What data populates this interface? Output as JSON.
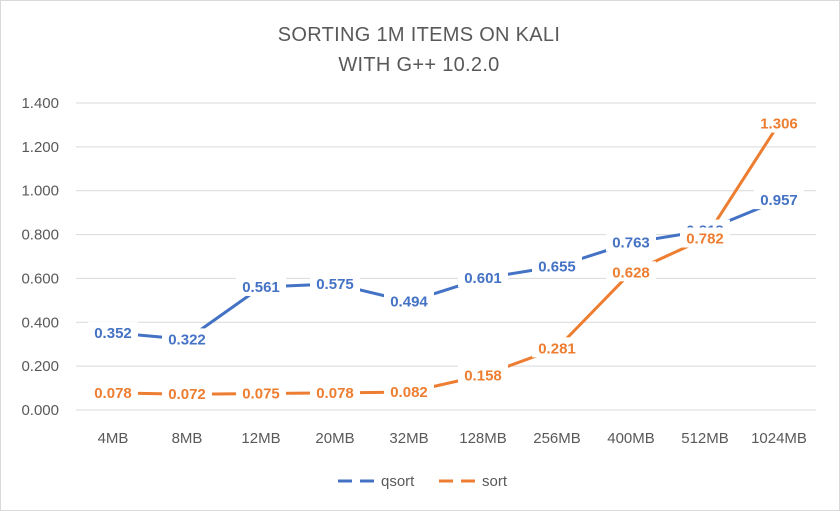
{
  "chart_data": {
    "type": "line",
    "title_lines": [
      "SORTING 1M ITEMS ON KALI",
      "WITH G++ 10.2.0"
    ],
    "categories": [
      "4MB",
      "8MB",
      "12MB",
      "20MB",
      "32MB",
      "128MB",
      "256MB",
      "400MB",
      "512MB",
      "1024MB"
    ],
    "y_ticks": [
      "0.000",
      "0.200",
      "0.400",
      "0.600",
      "0.800",
      "1.000",
      "1.200",
      "1.400"
    ],
    "ylim": [
      0,
      1.4
    ],
    "grid": true,
    "legend_position": "bottom",
    "series": [
      {
        "name": "qsort",
        "color": "#4472C4",
        "values": [
          0.352,
          0.322,
          0.561,
          0.575,
          0.494,
          0.601,
          0.655,
          0.763,
          0.818,
          0.957
        ],
        "labels": [
          "0.352",
          "0.322",
          "0.561",
          "0.575",
          "0.494",
          "0.601",
          "0.655",
          "0.763",
          "0.818",
          "0.957"
        ]
      },
      {
        "name": "sort",
        "color": "#ED7D31",
        "values": [
          0.078,
          0.072,
          0.075,
          0.078,
          0.082,
          0.158,
          0.281,
          0.628,
          0.782,
          1.306
        ],
        "labels": [
          "0.078",
          "0.072",
          "0.075",
          "0.078",
          "0.082",
          "0.158",
          "0.281",
          "0.628",
          "0.782",
          "1.306"
        ]
      }
    ]
  }
}
